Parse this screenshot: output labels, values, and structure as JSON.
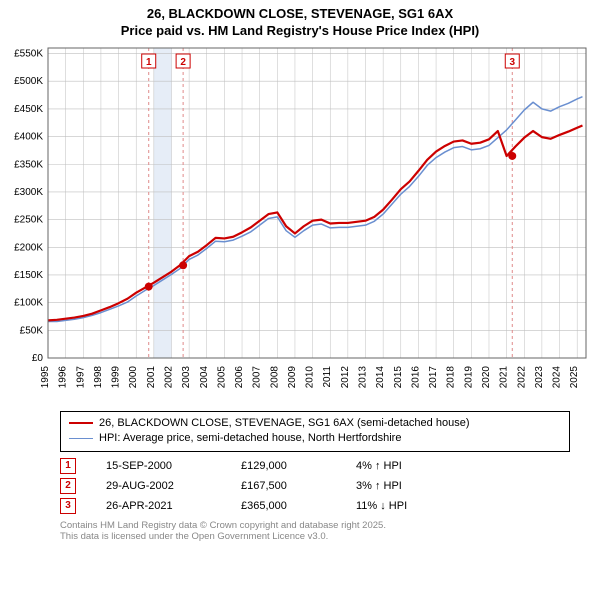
{
  "title_line1": "26, BLACKDOWN CLOSE, STEVENAGE, SG1 6AX",
  "title_line2": "Price paid vs. HM Land Registry's House Price Index (HPI)",
  "chart": {
    "type": "line",
    "background_color": "#ffffff",
    "plot_bg": "#ffffff",
    "grid_color": "#bfbfbf",
    "axis_color": "#666666",
    "label_fontsize": 11,
    "tick_fontsize": 10,
    "x_years": [
      1995,
      1996,
      1997,
      1998,
      1999,
      2000,
      2001,
      2002,
      2003,
      2004,
      2005,
      2006,
      2007,
      2008,
      2009,
      2010,
      2011,
      2012,
      2013,
      2014,
      2015,
      2016,
      2017,
      2018,
      2019,
      2020,
      2021,
      2022,
      2023,
      2024,
      2025
    ],
    "xlim": [
      1995,
      2025.5
    ],
    "ylim": [
      0,
      560000
    ],
    "yticks": [
      0,
      50000,
      100000,
      150000,
      200000,
      250000,
      300000,
      350000,
      400000,
      450000,
      500000,
      550000
    ],
    "ytick_labels": [
      "£0",
      "£50K",
      "£100K",
      "£150K",
      "£200K",
      "£250K",
      "£300K",
      "£350K",
      "£400K",
      "£450K",
      "£500K",
      "£550K"
    ],
    "series": [
      {
        "name": "HPI: Average price, semi-detached house, North Hertfordshire",
        "color": "#6a8fd0",
        "width": 1.5,
        "points": [
          [
            1995,
            66000
          ],
          [
            1995.5,
            66000
          ],
          [
            1996,
            68000
          ],
          [
            1996.5,
            70000
          ],
          [
            1997,
            73000
          ],
          [
            1997.5,
            77000
          ],
          [
            1998,
            82000
          ],
          [
            1998.5,
            88000
          ],
          [
            1999,
            94000
          ],
          [
            1999.5,
            101000
          ],
          [
            2000,
            112000
          ],
          [
            2000.5,
            122000
          ],
          [
            2001,
            131000
          ],
          [
            2001.5,
            141000
          ],
          [
            2002,
            151000
          ],
          [
            2002.5,
            162000
          ],
          [
            2003,
            178000
          ],
          [
            2003.5,
            186000
          ],
          [
            2004,
            198000
          ],
          [
            2004.5,
            211000
          ],
          [
            2005,
            210000
          ],
          [
            2005.5,
            213000
          ],
          [
            2006,
            220000
          ],
          [
            2006.5,
            228000
          ],
          [
            2007,
            240000
          ],
          [
            2007.5,
            252000
          ],
          [
            2008,
            255000
          ],
          [
            2008.5,
            230000
          ],
          [
            2009,
            218000
          ],
          [
            2009.5,
            230000
          ],
          [
            2010,
            240000
          ],
          [
            2010.5,
            242000
          ],
          [
            2011,
            235000
          ],
          [
            2011.5,
            236000
          ],
          [
            2012,
            236000
          ],
          [
            2012.5,
            238000
          ],
          [
            2013,
            240000
          ],
          [
            2013.5,
            247000
          ],
          [
            2014,
            260000
          ],
          [
            2014.5,
            278000
          ],
          [
            2015,
            296000
          ],
          [
            2015.5,
            310000
          ],
          [
            2016,
            328000
          ],
          [
            2016.5,
            348000
          ],
          [
            2017,
            362000
          ],
          [
            2017.5,
            372000
          ],
          [
            2018,
            380000
          ],
          [
            2018.5,
            382000
          ],
          [
            2019,
            376000
          ],
          [
            2019.5,
            378000
          ],
          [
            2020,
            384000
          ],
          [
            2020.5,
            398000
          ],
          [
            2021,
            412000
          ],
          [
            2021.5,
            430000
          ],
          [
            2022,
            448000
          ],
          [
            2022.5,
            462000
          ],
          [
            2023,
            450000
          ],
          [
            2023.5,
            446000
          ],
          [
            2024,
            454000
          ],
          [
            2024.5,
            460000
          ],
          [
            2025,
            468000
          ],
          [
            2025.3,
            472000
          ]
        ]
      },
      {
        "name": "26, BLACKDOWN CLOSE, STEVENAGE, SG1 6AX (semi-detached house)",
        "color": "#cc0000",
        "width": 2.2,
        "points": [
          [
            1995,
            68000
          ],
          [
            1995.5,
            69000
          ],
          [
            1996,
            71000
          ],
          [
            1996.5,
            73000
          ],
          [
            1997,
            76000
          ],
          [
            1997.5,
            80000
          ],
          [
            1998,
            86000
          ],
          [
            1998.5,
            92000
          ],
          [
            1999,
            99000
          ],
          [
            1999.5,
            107000
          ],
          [
            2000,
            118000
          ],
          [
            2000.5,
            127000
          ],
          [
            2001,
            136000
          ],
          [
            2001.5,
            146000
          ],
          [
            2002,
            156000
          ],
          [
            2002.5,
            168000
          ],
          [
            2003,
            184000
          ],
          [
            2003.5,
            192000
          ],
          [
            2004,
            204000
          ],
          [
            2004.5,
            217000
          ],
          [
            2005,
            216000
          ],
          [
            2005.5,
            219000
          ],
          [
            2006,
            227000
          ],
          [
            2006.5,
            236000
          ],
          [
            2007,
            248000
          ],
          [
            2007.5,
            260000
          ],
          [
            2008,
            263000
          ],
          [
            2008.5,
            238000
          ],
          [
            2009,
            225000
          ],
          [
            2009.5,
            238000
          ],
          [
            2010,
            248000
          ],
          [
            2010.5,
            250000
          ],
          [
            2011,
            243000
          ],
          [
            2011.5,
            244000
          ],
          [
            2012,
            244000
          ],
          [
            2012.5,
            246000
          ],
          [
            2013,
            248000
          ],
          [
            2013.5,
            255000
          ],
          [
            2014,
            268000
          ],
          [
            2014.5,
            286000
          ],
          [
            2015,
            305000
          ],
          [
            2015.5,
            319000
          ],
          [
            2016,
            338000
          ],
          [
            2016.5,
            358000
          ],
          [
            2017,
            373000
          ],
          [
            2017.5,
            383000
          ],
          [
            2018,
            391000
          ],
          [
            2018.5,
            393000
          ],
          [
            2019,
            387000
          ],
          [
            2019.5,
            389000
          ],
          [
            2020,
            395000
          ],
          [
            2020.5,
            410000
          ],
          [
            2021,
            365000
          ],
          [
            2021.5,
            382000
          ],
          [
            2022,
            398000
          ],
          [
            2022.5,
            410000
          ],
          [
            2023,
            399000
          ],
          [
            2023.5,
            396000
          ],
          [
            2024,
            403000
          ],
          [
            2024.5,
            409000
          ],
          [
            2025,
            416000
          ],
          [
            2025.3,
            420000
          ]
        ]
      }
    ],
    "sale_markers": [
      {
        "n": "1",
        "year": 2000.71,
        "price": 129000
      },
      {
        "n": "2",
        "year": 2002.66,
        "price": 167500
      },
      {
        "n": "3",
        "year": 2021.32,
        "price": 365000
      }
    ],
    "marker_color": "#cc0000",
    "marker_dash_color": "#e08a8a",
    "shade_band_color": "#e6edf7",
    "shade_band": [
      2001.0,
      2002.0
    ]
  },
  "legend": [
    {
      "color": "#cc0000",
      "width": 2,
      "label": "26, BLACKDOWN CLOSE, STEVENAGE, SG1 6AX (semi-detached house)"
    },
    {
      "color": "#6a8fd0",
      "width": 1,
      "label": "HPI: Average price, semi-detached house, North Hertfordshire"
    }
  ],
  "sales": [
    {
      "n": "1",
      "date": "15-SEP-2000",
      "price": "£129,000",
      "hpi": "4% ↑ HPI"
    },
    {
      "n": "2",
      "date": "29-AUG-2002",
      "price": "£167,500",
      "hpi": "3% ↑ HPI"
    },
    {
      "n": "3",
      "date": "26-APR-2021",
      "price": "£365,000",
      "hpi": "11% ↓ HPI"
    }
  ],
  "attribution_line1": "Contains HM Land Registry data © Crown copyright and database right 2025.",
  "attribution_line2": "This data is licensed under the Open Government Licence v3.0."
}
